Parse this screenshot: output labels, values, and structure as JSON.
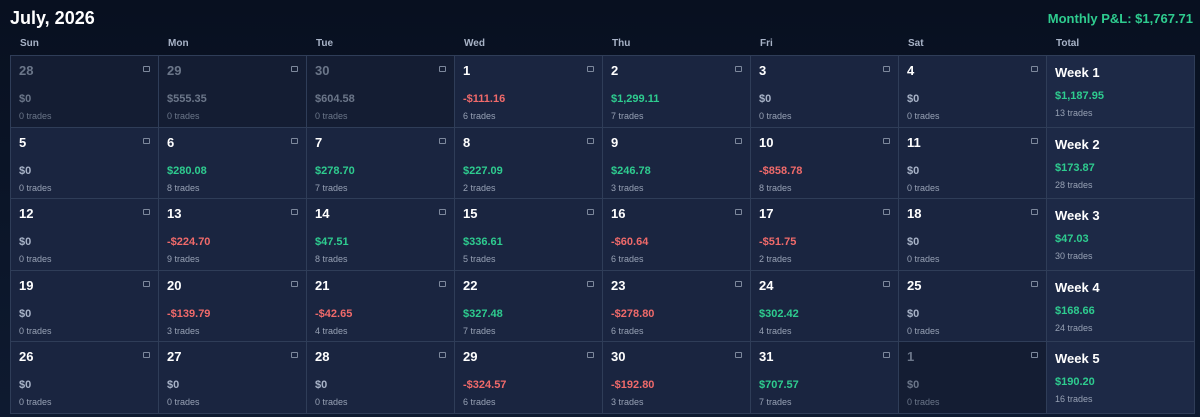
{
  "header": {
    "title": "July, 2026",
    "monthly_pnl": "Monthly P&L: $1,767.71"
  },
  "columns": [
    "Sun",
    "Mon",
    "Tue",
    "Wed",
    "Thu",
    "Fri",
    "Sat",
    "Total"
  ],
  "weeks": [
    {
      "days": [
        {
          "day": 28,
          "pnl": "$0",
          "trades": "0 trades",
          "muted": true
        },
        {
          "day": 29,
          "pnl": "$555.35",
          "trades": "0 trades",
          "muted": true
        },
        {
          "day": 30,
          "pnl": "$604.58",
          "trades": "0 trades",
          "muted": true
        },
        {
          "day": 1,
          "pnl": "-$111.16",
          "trades": "6 trades"
        },
        {
          "day": 2,
          "pnl": "$1,299.11",
          "trades": "7 trades"
        },
        {
          "day": 3,
          "pnl": "$0",
          "trades": "0 trades"
        },
        {
          "day": 4,
          "pnl": "$0",
          "trades": "0 trades"
        }
      ],
      "total": {
        "label": "Week 1",
        "pnl": "$1,187.95",
        "trades": "13 trades"
      }
    },
    {
      "days": [
        {
          "day": 5,
          "pnl": "$0",
          "trades": "0 trades"
        },
        {
          "day": 6,
          "pnl": "$280.08",
          "trades": "8 trades"
        },
        {
          "day": 7,
          "pnl": "$278.70",
          "trades": "7 trades"
        },
        {
          "day": 8,
          "pnl": "$227.09",
          "trades": "2 trades"
        },
        {
          "day": 9,
          "pnl": "$246.78",
          "trades": "3 trades"
        },
        {
          "day": 10,
          "pnl": "-$858.78",
          "trades": "8 trades"
        },
        {
          "day": 11,
          "pnl": "$0",
          "trades": "0 trades"
        }
      ],
      "total": {
        "label": "Week 2",
        "pnl": "$173.87",
        "trades": "28 trades"
      }
    },
    {
      "days": [
        {
          "day": 12,
          "pnl": "$0",
          "trades": "0 trades"
        },
        {
          "day": 13,
          "pnl": "-$224.70",
          "trades": "9 trades"
        },
        {
          "day": 14,
          "pnl": "$47.51",
          "trades": "8 trades"
        },
        {
          "day": 15,
          "pnl": "$336.61",
          "trades": "5 trades"
        },
        {
          "day": 16,
          "pnl": "-$60.64",
          "trades": "6 trades"
        },
        {
          "day": 17,
          "pnl": "-$51.75",
          "trades": "2 trades"
        },
        {
          "day": 18,
          "pnl": "$0",
          "trades": "0 trades"
        }
      ],
      "total": {
        "label": "Week 3",
        "pnl": "$47.03",
        "trades": "30 trades"
      }
    },
    {
      "days": [
        {
          "day": 19,
          "pnl": "$0",
          "trades": "0 trades"
        },
        {
          "day": 20,
          "pnl": "-$139.79",
          "trades": "3 trades"
        },
        {
          "day": 21,
          "pnl": "-$42.65",
          "trades": "4 trades"
        },
        {
          "day": 22,
          "pnl": "$327.48",
          "trades": "7 trades"
        },
        {
          "day": 23,
          "pnl": "-$278.80",
          "trades": "6 trades"
        },
        {
          "day": 24,
          "pnl": "$302.42",
          "trades": "4 trades"
        },
        {
          "day": 25,
          "pnl": "$0",
          "trades": "0 trades"
        }
      ],
      "total": {
        "label": "Week 4",
        "pnl": "$168.66",
        "trades": "24 trades"
      }
    },
    {
      "days": [
        {
          "day": 26,
          "pnl": "$0",
          "trades": "0 trades"
        },
        {
          "day": 27,
          "pnl": "$0",
          "trades": "0 trades"
        },
        {
          "day": 28,
          "pnl": "$0",
          "trades": "0 trades"
        },
        {
          "day": 29,
          "pnl": "-$324.57",
          "trades": "6 trades"
        },
        {
          "day": 30,
          "pnl": "-$192.80",
          "trades": "3 trades"
        },
        {
          "day": 31,
          "pnl": "$707.57",
          "trades": "7 trades"
        },
        {
          "day": 1,
          "pnl": "$0",
          "trades": "0 trades",
          "muted": true
        }
      ],
      "total": {
        "label": "Week 5",
        "pnl": "$190.20",
        "trades": "16 trades"
      }
    }
  ]
}
